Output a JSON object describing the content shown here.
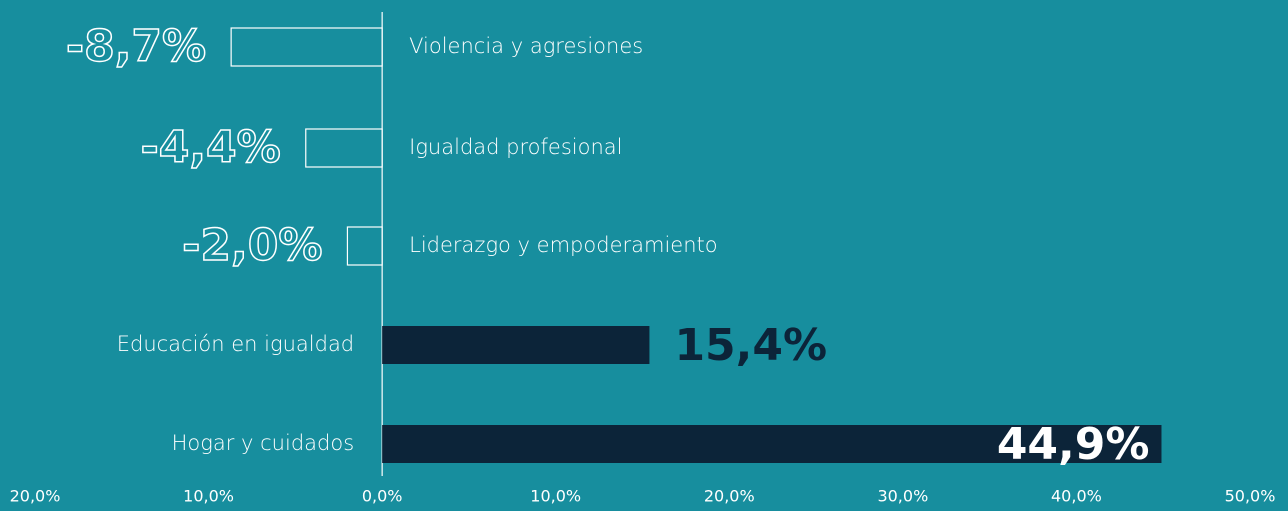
{
  "chart_data": {
    "type": "hbar",
    "categories": [
      "Violencia y agresiones",
      "Igualdad profesional",
      "Liderazgo y empoderamiento",
      "Educación en igualdad",
      "Hogar y cuidados"
    ],
    "values": [
      -8.7,
      -4.4,
      -2.0,
      15.4,
      44.9
    ],
    "value_labels": [
      "-8,7%",
      "-4,4%",
      "-2,0%",
      "15,4%",
      "44,9%"
    ],
    "color": "#0c2439",
    "xlim": [
      -20,
      50
    ],
    "xticks": [
      {
        "value": -20,
        "label": "20,0%"
      },
      {
        "value": -10,
        "label": "10,0%"
      },
      {
        "value": 0,
        "label": "0,0%"
      },
      {
        "value": 10,
        "label": "10,0%"
      },
      {
        "value": 20,
        "label": "20,0%"
      },
      {
        "value": 30,
        "label": "30,0%"
      },
      {
        "value": 40,
        "label": "40,0%"
      },
      {
        "value": 50,
        "label": "50,0%"
      }
    ]
  }
}
